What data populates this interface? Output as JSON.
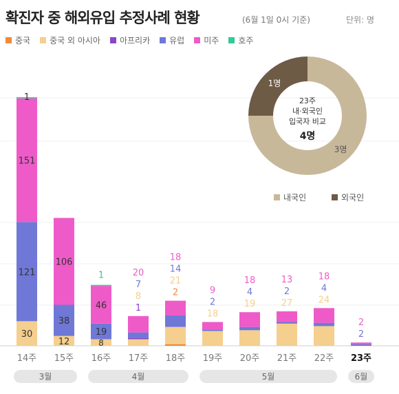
{
  "title": "확진자 중 해외유입 추정사례 현황",
  "subtitle": "(6월 1일 0시 기준)",
  "unit": "단위: 명",
  "colors": {
    "중국": "#f08a3c",
    "중국 외 아시아": "#f5cf8e",
    "아프리카": "#8a45c9",
    "유럽": "#6f78d6",
    "미주": "#ee5bc8",
    "호주": "#33c999",
    "donut_domestic": "#c8b89a",
    "donut_foreign": "#6e5b46"
  },
  "chart_data": [
    {
      "type": "bar",
      "stacked": true,
      "categories": [
        "14주",
        "15주",
        "16주",
        "17주",
        "18주",
        "19주",
        "20주",
        "21주",
        "22주",
        "23주"
      ],
      "series": [
        {
          "name": "중국",
          "values": [
            0,
            0,
            0,
            0,
            2,
            0,
            0,
            0,
            0,
            0
          ]
        },
        {
          "name": "중국 외 아시아",
          "values": [
            30,
            12,
            8,
            8,
            21,
            18,
            19,
            27,
            24,
            0
          ]
        },
        {
          "name": "아프리카",
          "values": [
            0,
            0,
            0,
            1,
            0,
            0,
            0,
            0,
            0,
            0
          ]
        },
        {
          "name": "유럽",
          "values": [
            121,
            38,
            19,
            7,
            14,
            2,
            4,
            2,
            4,
            2
          ]
        },
        {
          "name": "미주",
          "values": [
            151,
            106,
            46,
            20,
            18,
            9,
            18,
            13,
            18,
            2
          ]
        },
        {
          "name": "호주",
          "values": [
            1,
            0,
            1,
            0,
            0,
            0,
            0,
            0,
            0,
            0
          ]
        }
      ],
      "month_groups": [
        {
          "label": "3월",
          "from": 0,
          "to": 1
        },
        {
          "label": "4월",
          "from": 2,
          "to": 4
        },
        {
          "label": "5월",
          "from": 5,
          "to": 8
        },
        {
          "label": "6월",
          "from": 9,
          "to": 9
        }
      ]
    },
    {
      "type": "pie",
      "donut": true,
      "center_label": "23주\n내·외국인\n입국자 비교",
      "center_total": "4명",
      "slices": [
        {
          "name": "내국인",
          "value": 3,
          "label": "3명"
        },
        {
          "name": "외국인",
          "value": 1,
          "label": "1명"
        }
      ]
    }
  ]
}
